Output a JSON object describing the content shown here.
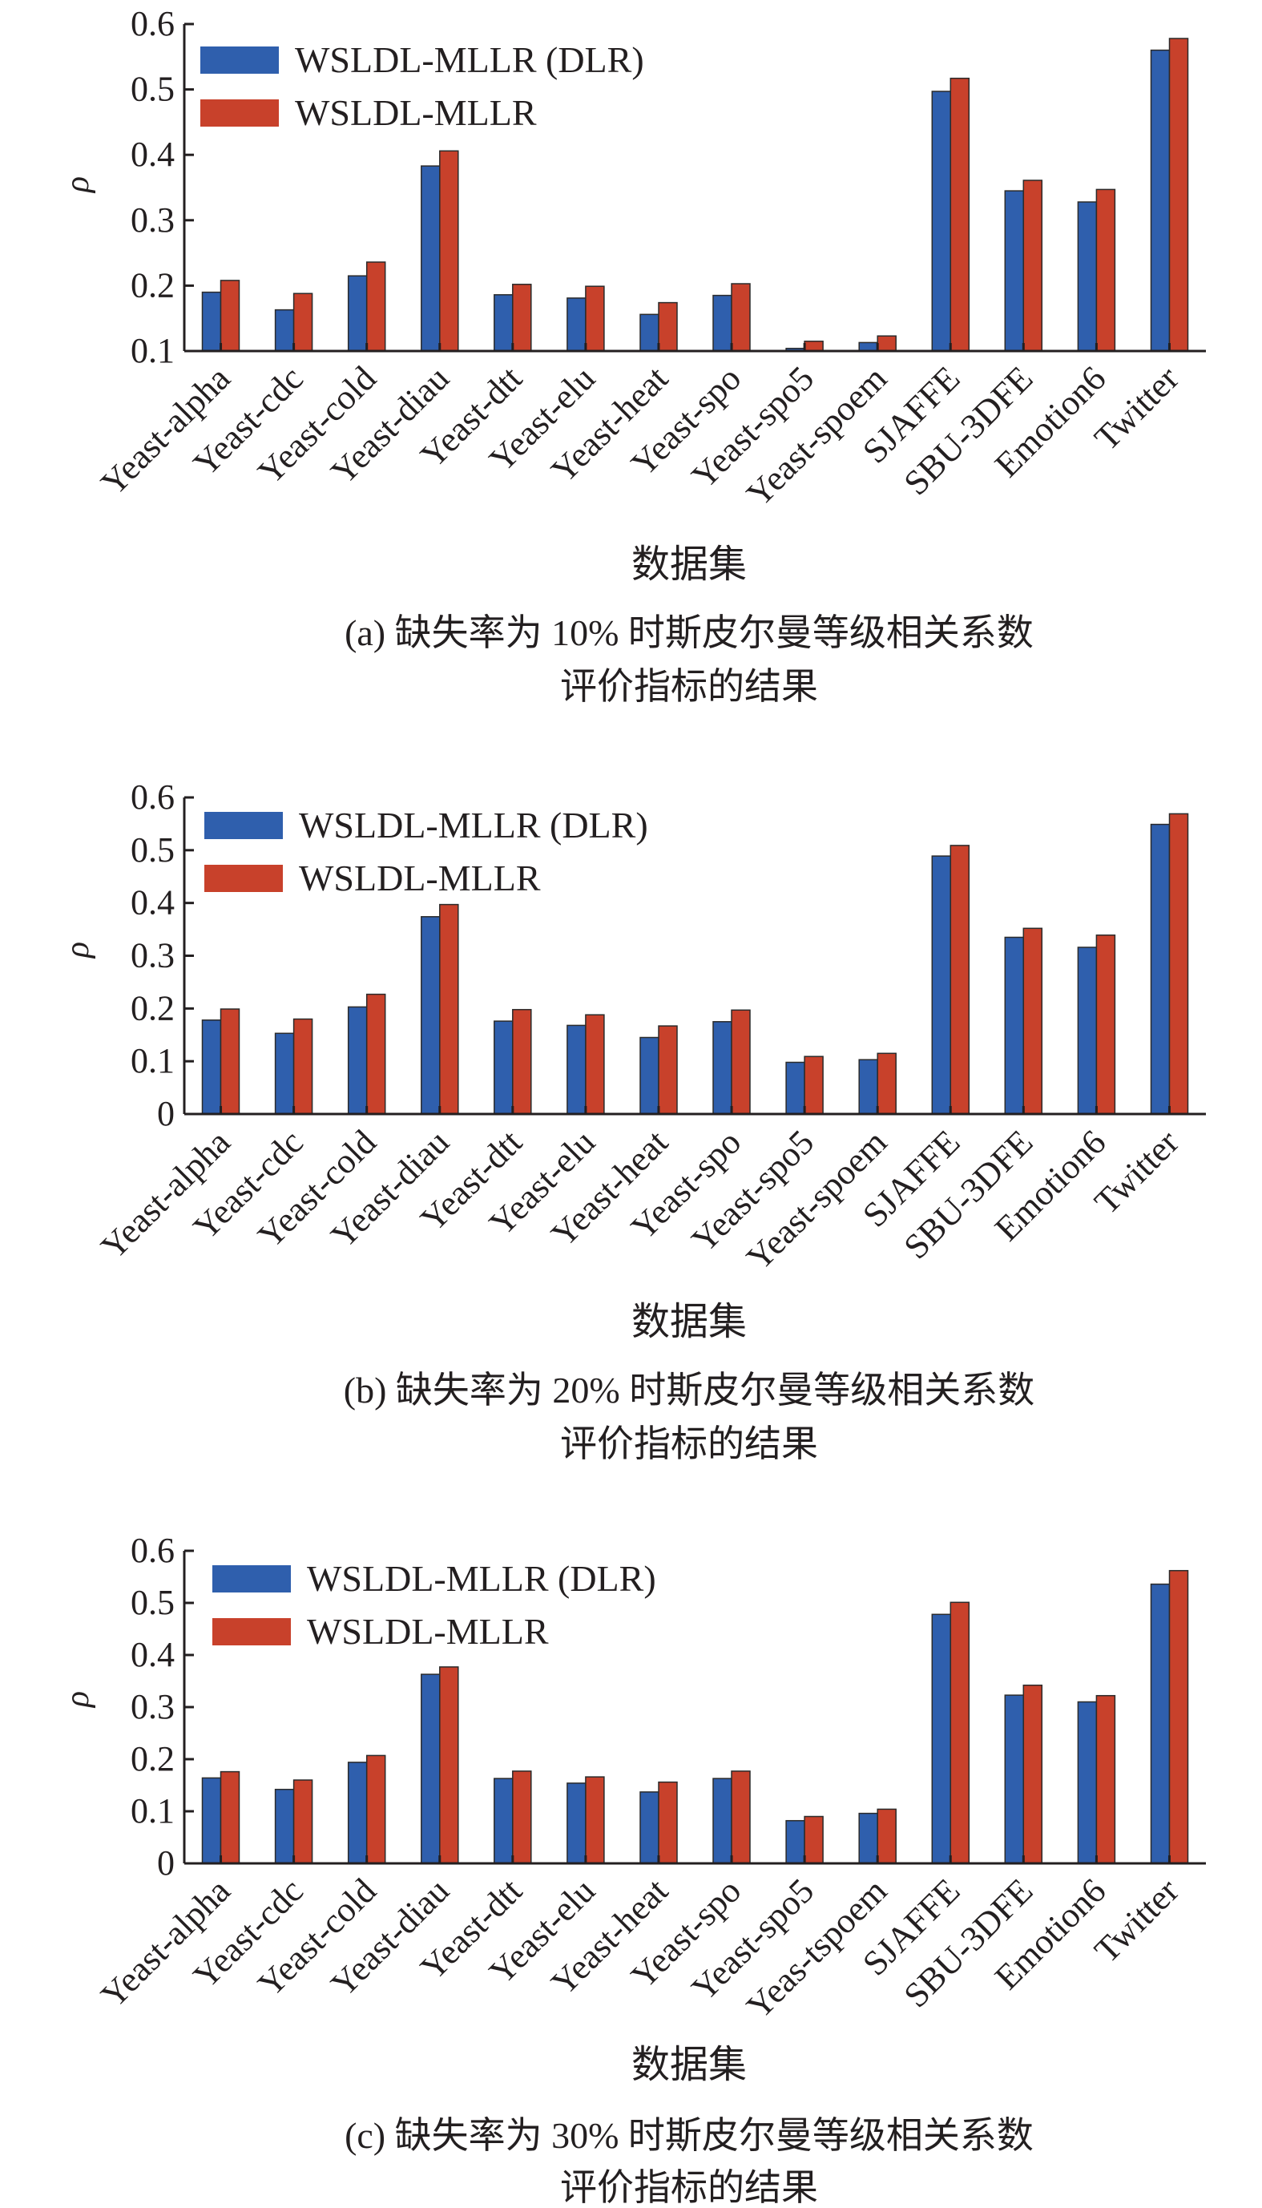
{
  "figure": {
    "xlabel": "数据集",
    "ylabel": "ρ",
    "series_names": [
      "WSLDL-MLLR (DLR)",
      "WSLDL-MLLR"
    ],
    "colors": {
      "dlr": "#2f5fad",
      "mllr": "#c8412b"
    }
  },
  "chart_data": [
    {
      "type": "bar",
      "id": "a",
      "title": "(a) 缺失率为 10% 时斯皮尔曼等级相关系数",
      "title_line2": "评价指标的结果",
      "xlabel": "数据集",
      "ylabel": "ρ",
      "ylim": [
        0.1,
        0.6
      ],
      "yticks": [
        "0.1",
        "0.2",
        "0.3",
        "0.4",
        "0.5",
        "0.6"
      ],
      "categories": [
        "Yeast-alpha",
        "Yeast-cdc",
        "Yeast-cold",
        "Yeast-diau",
        "Yeast-dtt",
        "Yeast-elu",
        "Yeast-heat",
        "Yeast-spo",
        "Yeast-spo5",
        "Yeast-spoem",
        "SJAFFE",
        "SBU-3DFE",
        "Emotion6",
        "Twitter"
      ],
      "series": [
        {
          "name": "WSLDL-MLLR (DLR)",
          "values": [
            0.19,
            0.163,
            0.215,
            0.383,
            0.186,
            0.181,
            0.156,
            0.185,
            0.104,
            0.113,
            0.497,
            0.345,
            0.328,
            0.56
          ]
        },
        {
          "name": "WSLDL-MLLR",
          "values": [
            0.208,
            0.188,
            0.236,
            0.406,
            0.202,
            0.199,
            0.174,
            0.203,
            0.115,
            0.123,
            0.517,
            0.361,
            0.347,
            0.578
          ]
        }
      ],
      "legend": "top-left"
    },
    {
      "type": "bar",
      "id": "b",
      "title": "(b) 缺失率为 20% 时斯皮尔曼等级相关系数",
      "title_line2": "评价指标的结果",
      "xlabel": "数据集",
      "ylabel": "ρ",
      "ylim": [
        0,
        0.6
      ],
      "yticks": [
        "0",
        "0.1",
        "0.2",
        "0.3",
        "0.4",
        "0.5",
        "0.6"
      ],
      "categories": [
        "Yeast-alpha",
        "Yeast-cdc",
        "Yeast-cold",
        "Yeast-diau",
        "Yeast-dtt",
        "Yeast-elu",
        "Yeast-heat",
        "Yeast-spo",
        "Yeast-spo5",
        "Yeast-spoem",
        "SJAFFE",
        "SBU-3DFE",
        "Emotion6",
        "Twitter"
      ],
      "series": [
        {
          "name": "WSLDL-MLLR (DLR)",
          "values": [
            0.178,
            0.153,
            0.203,
            0.374,
            0.176,
            0.168,
            0.145,
            0.175,
            0.098,
            0.103,
            0.489,
            0.335,
            0.316,
            0.549
          ]
        },
        {
          "name": "WSLDL-MLLR",
          "values": [
            0.199,
            0.18,
            0.227,
            0.397,
            0.198,
            0.188,
            0.167,
            0.197,
            0.109,
            0.115,
            0.509,
            0.352,
            0.339,
            0.569
          ]
        }
      ],
      "legend": "top-left"
    },
    {
      "type": "bar",
      "id": "c",
      "title": "(c) 缺失率为 30% 时斯皮尔曼等级相关系数",
      "title_line2": "评价指标的结果",
      "xlabel": "数据集",
      "ylabel": "ρ",
      "ylim": [
        0,
        0.6
      ],
      "yticks": [
        "0",
        "0.1",
        "0.2",
        "0.3",
        "0.4",
        "0.5",
        "0.6"
      ],
      "categories": [
        "Yeast-alpha",
        "Yeast-cdc",
        "Yeast-cold",
        "Yeast-diau",
        "Yeast-dtt",
        "Yeast-elu",
        "Yeast-heat",
        "Yeast-spo",
        "Yeast-spo5",
        "Yeas-tspoem",
        "SJAFFE",
        "SBU-3DFE",
        "Emotion6",
        "Twitter"
      ],
      "series": [
        {
          "name": "WSLDL-MLLR (DLR)",
          "values": [
            0.164,
            0.142,
            0.194,
            0.363,
            0.163,
            0.154,
            0.137,
            0.163,
            0.082,
            0.096,
            0.478,
            0.323,
            0.31,
            0.536
          ]
        },
        {
          "name": "WSLDL-MLLR",
          "values": [
            0.176,
            0.16,
            0.207,
            0.377,
            0.177,
            0.166,
            0.156,
            0.177,
            0.09,
            0.104,
            0.501,
            0.342,
            0.322,
            0.562
          ]
        }
      ],
      "legend": "top-left"
    }
  ]
}
